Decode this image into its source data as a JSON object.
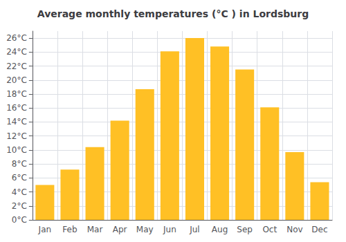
{
  "chart_data": {
    "type": "bar",
    "title": "Average monthly temperatures (°C ) in Lordsburg",
    "categories": [
      "Jan",
      "Feb",
      "Mar",
      "Apr",
      "May",
      "Jun",
      "Jul",
      "Aug",
      "Sep",
      "Oct",
      "Nov",
      "Dec"
    ],
    "values": [
      5.0,
      7.2,
      10.4,
      14.2,
      18.7,
      24.1,
      26.0,
      24.8,
      21.5,
      16.1,
      9.7,
      5.4
    ],
    "color": "#FFC025",
    "ylim": [
      0,
      27
    ],
    "yticks": [
      {
        "value": 0,
        "label": "0°C"
      },
      {
        "value": 2,
        "label": "2°C"
      },
      {
        "value": 4,
        "label": "4°C"
      },
      {
        "value": 6,
        "label": "6°C"
      },
      {
        "value": 8,
        "label": "8°C"
      },
      {
        "value": 10,
        "label": "10°C"
      },
      {
        "value": 12,
        "label": "12°C"
      },
      {
        "value": 14,
        "label": "14°C"
      },
      {
        "value": 16,
        "label": "16°C"
      },
      {
        "value": 18,
        "label": "18°C"
      },
      {
        "value": 20,
        "label": "20°C"
      },
      {
        "value": 22,
        "label": "22°C"
      },
      {
        "value": 24,
        "label": "24°C"
      },
      {
        "value": 26,
        "label": "26°C"
      }
    ],
    "grid": true
  }
}
